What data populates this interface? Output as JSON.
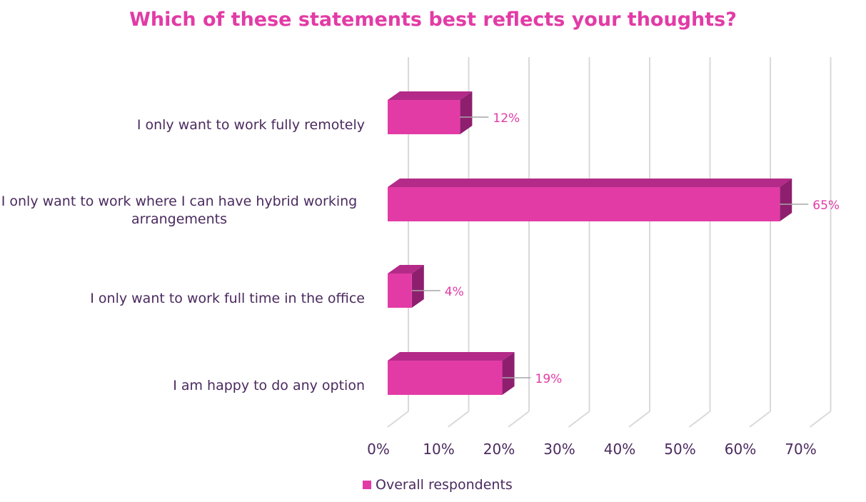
{
  "colors": {
    "title": "#e23ba6",
    "bar_front": "#e23ba6",
    "bar_top": "#b42a88",
    "bar_side": "#8d1f6e",
    "label": "#4a2a5e",
    "data_label": "#e23ba6",
    "grid": "#d9d9d9",
    "leader": "#a6a6a6"
  },
  "chart_data": {
    "type": "bar",
    "orientation": "horizontal",
    "title": "Which of these statements best reflects your thoughts?",
    "categories": [
      "I only want to work fully remotely",
      "I only want to work where I can have hybrid working arrangements",
      "I only want to work full time in the office",
      "I am happy to do any option"
    ],
    "series": [
      {
        "name": "Overall respondents",
        "values": [
          12,
          65,
          4,
          19
        ],
        "data_labels": [
          "12%",
          "65%",
          "4%",
          "19%"
        ]
      }
    ],
    "xlim": [
      0,
      70
    ],
    "x_ticks": [
      0,
      10,
      20,
      30,
      40,
      50,
      60,
      70
    ],
    "x_tick_labels": [
      "0%",
      "10%",
      "20%",
      "30%",
      "40%",
      "50%",
      "60%",
      "70%"
    ],
    "grid": true,
    "legend_position": "bottom",
    "style": "3d"
  }
}
